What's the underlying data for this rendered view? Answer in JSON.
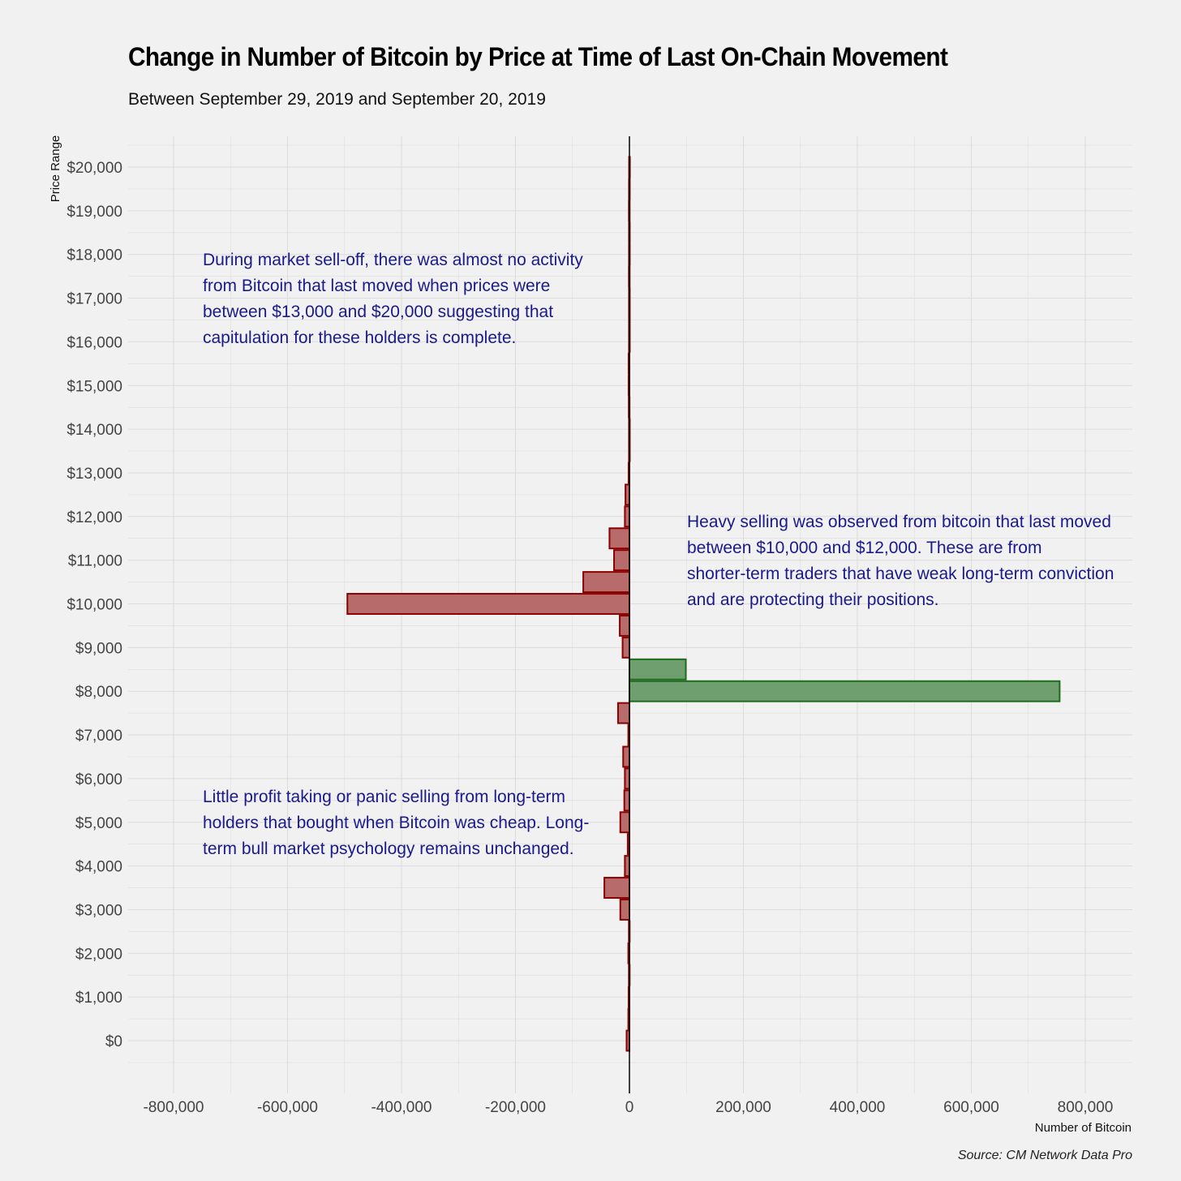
{
  "chart_data": {
    "type": "bar",
    "orientation": "horizontal",
    "title": "Change in Number of Bitcoin by Price at Time of Last On-Chain Movement",
    "subtitle": "Between September 29, 2019 and September 20, 2019",
    "xlabel": "Number of Bitcoin",
    "ylabel": "Price Range",
    "xlim": [
      -880000,
      880000
    ],
    "ylim": [
      -1000,
      20700
    ],
    "x_ticks": [
      {
        "value": -800000,
        "label": "-800,000"
      },
      {
        "value": -600000,
        "label": "-600,000"
      },
      {
        "value": -400000,
        "label": "-400,000"
      },
      {
        "value": -200000,
        "label": "-200,000"
      },
      {
        "value": 0,
        "label": "0"
      },
      {
        "value": 200000,
        "label": "200,000"
      },
      {
        "value": 400000,
        "label": "400,000"
      },
      {
        "value": 600000,
        "label": "600,000"
      },
      {
        "value": 800000,
        "label": "800,000"
      }
    ],
    "y_ticks": [
      {
        "value": 0,
        "label": "$0"
      },
      {
        "value": 1000,
        "label": "$1,000"
      },
      {
        "value": 2000,
        "label": "$2,000"
      },
      {
        "value": 3000,
        "label": "$3,000"
      },
      {
        "value": 4000,
        "label": "$4,000"
      },
      {
        "value": 5000,
        "label": "$5,000"
      },
      {
        "value": 6000,
        "label": "$6,000"
      },
      {
        "value": 7000,
        "label": "$7,000"
      },
      {
        "value": 8000,
        "label": "$8,000"
      },
      {
        "value": 9000,
        "label": "$9,000"
      },
      {
        "value": 10000,
        "label": "$10,000"
      },
      {
        "value": 11000,
        "label": "$11,000"
      },
      {
        "value": 12000,
        "label": "$12,000"
      },
      {
        "value": 13000,
        "label": "$13,000"
      },
      {
        "value": 14000,
        "label": "$14,000"
      },
      {
        "value": 15000,
        "label": "$15,000"
      },
      {
        "value": 16000,
        "label": "$16,000"
      },
      {
        "value": 17000,
        "label": "$17,000"
      },
      {
        "value": 18000,
        "label": "$18,000"
      },
      {
        "value": 19000,
        "label": "$19,000"
      },
      {
        "value": 20000,
        "label": "$20,000"
      }
    ],
    "bin_width": 500,
    "bars": [
      {
        "price": 0,
        "value": -5000
      },
      {
        "price": 500,
        "value": -2000
      },
      {
        "price": 1000,
        "value": -1500
      },
      {
        "price": 1500,
        "value": -1000
      },
      {
        "price": 2000,
        "value": -2000
      },
      {
        "price": 2500,
        "value": -1000
      },
      {
        "price": 3000,
        "value": -16000
      },
      {
        "price": 3500,
        "value": -44000
      },
      {
        "price": 4000,
        "value": -8000
      },
      {
        "price": 4500,
        "value": -3000
      },
      {
        "price": 5000,
        "value": -16000
      },
      {
        "price": 5500,
        "value": -9000
      },
      {
        "price": 6000,
        "value": -8000
      },
      {
        "price": 6500,
        "value": -11000
      },
      {
        "price": 7000,
        "value": -2000
      },
      {
        "price": 7500,
        "value": -20000
      },
      {
        "price": 8000,
        "value": 755000
      },
      {
        "price": 8500,
        "value": 99000
      },
      {
        "price": 9000,
        "value": -12000
      },
      {
        "price": 9500,
        "value": -17000
      },
      {
        "price": 10000,
        "value": -495000
      },
      {
        "price": 10500,
        "value": -81000
      },
      {
        "price": 11000,
        "value": -27000
      },
      {
        "price": 11500,
        "value": -35000
      },
      {
        "price": 12000,
        "value": -8000
      },
      {
        "price": 12500,
        "value": -7000
      },
      {
        "price": 13000,
        "value": -1500
      },
      {
        "price": 13500,
        "value": -800
      },
      {
        "price": 14000,
        "value": -800
      },
      {
        "price": 14500,
        "value": -1200
      },
      {
        "price": 15000,
        "value": -1500
      },
      {
        "price": 15500,
        "value": -1500
      },
      {
        "price": 16000,
        "value": -800
      },
      {
        "price": 16500,
        "value": -800
      },
      {
        "price": 17000,
        "value": -800
      },
      {
        "price": 17500,
        "value": -1000
      },
      {
        "price": 18000,
        "value": -800
      },
      {
        "price": 18500,
        "value": -800
      },
      {
        "price": 19000,
        "value": -1000
      },
      {
        "price": 19500,
        "value": -800
      },
      {
        "price": 20000,
        "value": -600
      }
    ],
    "grid": true,
    "annotations": {
      "top": "During market sell-off, there was almost no activity\nfrom Bitcoin that last moved when prices were\nbetween $13,000 and $20,000 suggesting that\ncapitulation for these holders is complete.",
      "right": "Heavy selling was observed from bitcoin that last moved\nbetween $10,000 and $12,000. These are from\nshorter-term traders that have weak long-term conviction\nand are protecting their positions.",
      "bottom": "Little profit taking or panic selling from long-term\nholders that bought when Bitcoin was cheap. Long-\nterm bull market psychology remains unchanged."
    },
    "caption": "Source: CM Network Data Pro"
  },
  "colors": {
    "background": "#f1f1f1",
    "grid": "#dcdcdc",
    "negative_fill": "#b86b6b",
    "negative_stroke": "#8b0000",
    "positive_fill": "#6f9f6f",
    "positive_stroke": "#1e6b1e",
    "annotation_text": "#1a1a8c",
    "zero_line": "#000000"
  }
}
